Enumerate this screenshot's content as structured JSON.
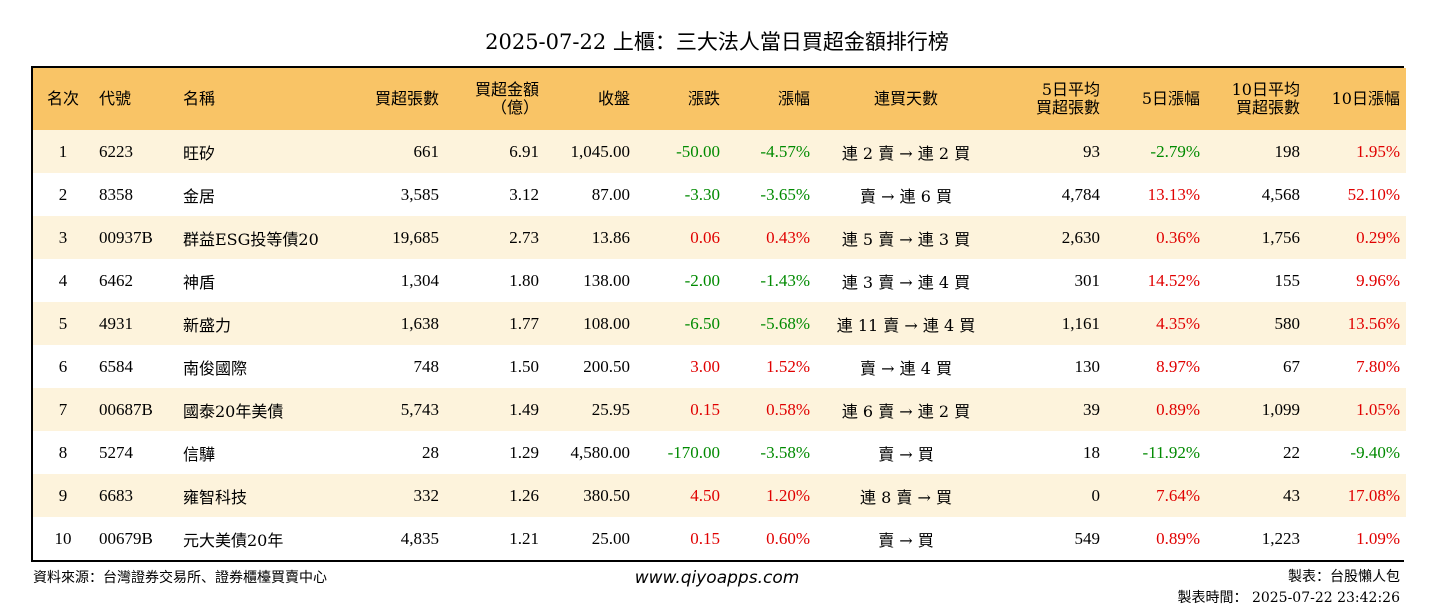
{
  "title": "2025-07-22 上櫃：三大法人當日買超金額排行榜",
  "columns": {
    "rank": "名次",
    "code": "代號",
    "name": "名稱",
    "buy_lots": "買超張數",
    "buy_amount_l1": "買超金額",
    "buy_amount_l2": "（億）",
    "close": "收盤",
    "change": "漲跌",
    "change_pct": "漲幅",
    "streak": "連買天數",
    "avg5_l1": "5日平均",
    "avg5_l2": "買超張數",
    "pct5": "5日漲幅",
    "avg10_l1": "10日平均",
    "avg10_l2": "買超張數",
    "pct10": "10日漲幅"
  },
  "rows": [
    {
      "rank": "1",
      "code": "6223",
      "name": "旺矽",
      "buy_lots": "661",
      "buy_amount": "6.91",
      "close": "1,045.00",
      "change": "-50.00",
      "change_pct": "-4.57%",
      "streak": "連 2 賣 → 連 2 買",
      "avg5": "93",
      "pct5": "-2.79%",
      "avg10": "198",
      "pct10": "1.95%"
    },
    {
      "rank": "2",
      "code": "8358",
      "name": "金居",
      "buy_lots": "3,585",
      "buy_amount": "3.12",
      "close": "87.00",
      "change": "-3.30",
      "change_pct": "-3.65%",
      "streak": "賣 → 連 6 買",
      "avg5": "4,784",
      "pct5": "13.13%",
      "avg10": "4,568",
      "pct10": "52.10%"
    },
    {
      "rank": "3",
      "code": "00937B",
      "name": "群益ESG投等債20",
      "buy_lots": "19,685",
      "buy_amount": "2.73",
      "close": "13.86",
      "change": "0.06",
      "change_pct": "0.43%",
      "streak": "連 5 賣 → 連 3 買",
      "avg5": "2,630",
      "pct5": "0.36%",
      "avg10": "1,756",
      "pct10": "0.29%"
    },
    {
      "rank": "4",
      "code": "6462",
      "name": "神盾",
      "buy_lots": "1,304",
      "buy_amount": "1.80",
      "close": "138.00",
      "change": "-2.00",
      "change_pct": "-1.43%",
      "streak": "連 3 賣 → 連 4 買",
      "avg5": "301",
      "pct5": "14.52%",
      "avg10": "155",
      "pct10": "9.96%"
    },
    {
      "rank": "5",
      "code": "4931",
      "name": "新盛力",
      "buy_lots": "1,638",
      "buy_amount": "1.77",
      "close": "108.00",
      "change": "-6.50",
      "change_pct": "-5.68%",
      "streak": "連 11 賣 → 連 4 買",
      "avg5": "1,161",
      "pct5": "4.35%",
      "avg10": "580",
      "pct10": "13.56%"
    },
    {
      "rank": "6",
      "code": "6584",
      "name": "南俊國際",
      "buy_lots": "748",
      "buy_amount": "1.50",
      "close": "200.50",
      "change": "3.00",
      "change_pct": "1.52%",
      "streak": "賣 → 連 4 買",
      "avg5": "130",
      "pct5": "8.97%",
      "avg10": "67",
      "pct10": "7.80%"
    },
    {
      "rank": "7",
      "code": "00687B",
      "name": "國泰20年美債",
      "buy_lots": "5,743",
      "buy_amount": "1.49",
      "close": "25.95",
      "change": "0.15",
      "change_pct": "0.58%",
      "streak": "連 6 賣 → 連 2 買",
      "avg5": "39",
      "pct5": "0.89%",
      "avg10": "1,099",
      "pct10": "1.05%"
    },
    {
      "rank": "8",
      "code": "5274",
      "name": "信驊",
      "buy_lots": "28",
      "buy_amount": "1.29",
      "close": "4,580.00",
      "change": "-170.00",
      "change_pct": "-3.58%",
      "streak": "賣 → 買",
      "avg5": "18",
      "pct5": "-11.92%",
      "avg10": "22",
      "pct10": "-9.40%"
    },
    {
      "rank": "9",
      "code": "6683",
      "name": "雍智科技",
      "buy_lots": "332",
      "buy_amount": "1.26",
      "close": "380.50",
      "change": "4.50",
      "change_pct": "1.20%",
      "streak": "連 8 賣 → 買",
      "avg5": "0",
      "pct5": "7.64%",
      "avg10": "43",
      "pct10": "17.08%"
    },
    {
      "rank": "10",
      "code": "00679B",
      "name": "元大美債20年",
      "buy_lots": "4,835",
      "buy_amount": "1.21",
      "close": "25.00",
      "change": "0.15",
      "change_pct": "0.60%",
      "streak": "賣 → 買",
      "avg5": "549",
      "pct5": "0.89%",
      "avg10": "1,223",
      "pct10": "1.09%"
    }
  ],
  "colors": {
    "header_bg": "#f9c466",
    "stripe": "#fdf3dc",
    "up": "#e00000",
    "down": "#008a00"
  },
  "footer": {
    "source": "資料來源：台灣證券交易所、證券櫃檯買賣中心",
    "site": "www.qiyoapps.com",
    "maker": "製表：台股懶人包",
    "time": "製表時間： 2025-07-22 23:42:26"
  }
}
